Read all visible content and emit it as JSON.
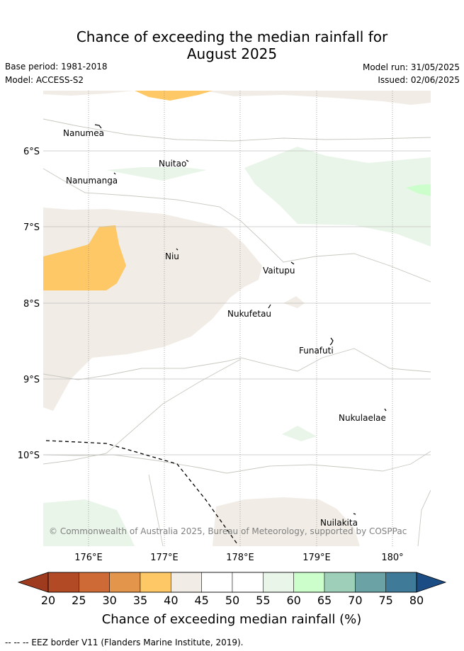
{
  "title_line1": "Chance of exceeding the median rainfall for",
  "title_line2": "August 2025",
  "base_period": "Base period: 1981-2018",
  "model": "Model: ACCESS-S2",
  "model_run": "Model run: 31/05/2025",
  "issued": "Issued: 02/06/2025",
  "copyright": "© Commonwealth of Australia 2025, Bureau of Meteorology, supported by COSPPac",
  "eez_note": "--  --  -- EEZ border V11 (Flanders Marine Institute, 2019).",
  "map": {
    "lon_ticks": [
      "176°E",
      "177°E",
      "178°E",
      "179°E",
      "180°"
    ],
    "lat_ticks": [
      "6°S",
      "7°S",
      "8°S",
      "9°S",
      "10°S"
    ],
    "places": [
      {
        "name": "Nanumea"
      },
      {
        "name": "Nuitao"
      },
      {
        "name": "Nanumanga"
      },
      {
        "name": "Niu"
      },
      {
        "name": "Vaitupu"
      },
      {
        "name": "Nukufetau"
      },
      {
        "name": "Funafuti"
      },
      {
        "name": "Nukulaelae"
      },
      {
        "name": "Nuilakita"
      }
    ]
  },
  "colorbar": {
    "label": "Chance of exceeding median rainfall (%)",
    "ticks": [
      "20",
      "25",
      "30",
      "35",
      "40",
      "45",
      "50",
      "55",
      "60",
      "65",
      "70",
      "75",
      "80"
    ],
    "colors": [
      "#b24a26",
      "#cd6a35",
      "#e3954b",
      "#fdc865",
      "#f1ede6",
      "#ffffff",
      "#ffffff",
      "#e9f5e8",
      "#ccfecc",
      "#9dcfb9",
      "#6aa2a5",
      "#3f7a98"
    ],
    "under_color": "#9e3b1e",
    "over_color": "#1c4c84"
  }
}
